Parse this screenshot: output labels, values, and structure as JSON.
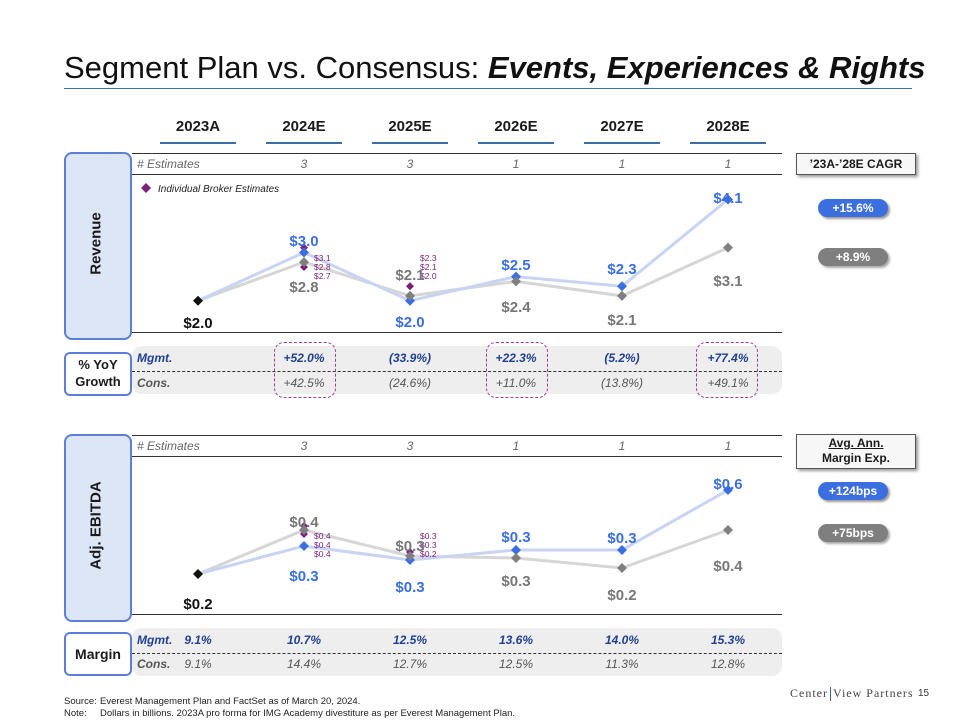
{
  "title": {
    "plain": "Segment Plan vs. Consensus: ",
    "emph": "Events, Experiences & Rights"
  },
  "years": [
    "2023A",
    "2024E",
    "2025E",
    "2026E",
    "2027E",
    "2028E"
  ],
  "estimates_label": "# Estimates",
  "estimates": [
    "3",
    "3",
    "1",
    "1",
    "1"
  ],
  "broker_legend": "Individual Broker Estimates",
  "colors": {
    "mgmt": "#3b6fe0",
    "cons": "#7f7f7f",
    "broker": "#7b1f7a",
    "actual": "#111111",
    "highlight": "#a03c96"
  },
  "revenue": {
    "label": "Revenue",
    "cagr_label": "’23A-’28E CAGR",
    "cagr_mgmt": "+15.6%",
    "cagr_cons": "+8.9%",
    "chart_data": {
      "type": "line",
      "categories": [
        "2023A",
        "2024E",
        "2025E",
        "2026E",
        "2027E",
        "2028E"
      ],
      "series": [
        {
          "key": "mgmt",
          "values": [
            2.0,
            3.0,
            2.0,
            2.5,
            2.3,
            4.1
          ],
          "labels": [
            "$2.0",
            "$3.0",
            "$2.0",
            "$2.5",
            "$2.3",
            "$4.1"
          ]
        },
        {
          "key": "cons",
          "values": [
            2.0,
            2.8,
            2.1,
            2.4,
            2.1,
            3.1
          ],
          "labels": [
            "",
            "$2.8",
            "$2.1",
            "$2.4",
            "$2.1",
            "$3.1"
          ]
        }
      ],
      "broker_estimates": [
        {
          "category": "2024E",
          "values": [
            3.1,
            2.8,
            2.7
          ],
          "labels": [
            "$3.1",
            "$2.8",
            "$2.7"
          ]
        },
        {
          "category": "2025E",
          "values": [
            2.3,
            2.1,
            2.0
          ],
          "labels": [
            "$2.3",
            "$2.1",
            "$2.0"
          ]
        }
      ],
      "ylim": [
        1.6,
        4.4
      ]
    }
  },
  "growth": {
    "label_line1": "% YoY",
    "label_line2": "Growth",
    "mgmt_label": "Mgmt.",
    "cons_label": "Cons.",
    "mgmt": [
      "+52.0%",
      "(33.9%)",
      "+22.3%",
      "(5.2%)",
      "+77.4%"
    ],
    "cons": [
      "+42.5%",
      "(24.6%)",
      "+11.0%",
      "(13.8%)",
      "+49.1%"
    ]
  },
  "ebitda": {
    "label": "Adj. EBITDA",
    "margin_hdr_line1": "Avg. Ann.",
    "margin_hdr_line2": "Margin Exp.",
    "exp_mgmt": "+124bps",
    "exp_cons": "+75bps",
    "chart_data": {
      "type": "line",
      "categories": [
        "2023A",
        "2024E",
        "2025E",
        "2026E",
        "2027E",
        "2028E"
      ],
      "series": [
        {
          "key": "mgmt",
          "values": [
            0.18,
            0.32,
            0.25,
            0.3,
            0.3,
            0.6
          ],
          "labels": [
            "$0.2",
            "$0.3",
            "$0.3",
            "$0.3",
            "$0.3",
            "$0.6"
          ]
        },
        {
          "key": "cons",
          "values": [
            0.18,
            0.4,
            0.27,
            0.26,
            0.21,
            0.4
          ],
          "labels": [
            "",
            "$0.4",
            "$0.3",
            "$0.3",
            "$0.2",
            "$0.4"
          ]
        }
      ],
      "broker_estimates": [
        {
          "category": "2024E",
          "values": [
            0.42,
            0.4,
            0.38
          ],
          "labels": [
            "$0.4",
            "$0.4",
            "$0.4"
          ]
        },
        {
          "category": "2025E",
          "values": [
            0.29,
            0.27,
            0.25
          ],
          "labels": [
            "$0.3",
            "$0.3",
            "$0.2"
          ]
        }
      ],
      "ylim": [
        0.05,
        0.7
      ]
    }
  },
  "margin": {
    "label": "Margin",
    "mgmt_label": "Mgmt.",
    "cons_label": "Cons.",
    "mgmt": [
      "9.1%",
      "10.7%",
      "12.5%",
      "13.6%",
      "14.0%",
      "15.3%"
    ],
    "cons": [
      "9.1%",
      "14.4%",
      "12.7%",
      "12.5%",
      "11.3%",
      "12.8%"
    ]
  },
  "footnotes": {
    "source_key": "Source:",
    "source": "Everest Management Plan and FactSet as of March 20, 2024.",
    "note_key": "Note:",
    "note": "Dollars in billions. 2023A pro forma for IMG Academy divestiture as per Everest Management Plan."
  },
  "logo": {
    "left": "Center",
    "right": "View Partners"
  },
  "page_number": "15"
}
